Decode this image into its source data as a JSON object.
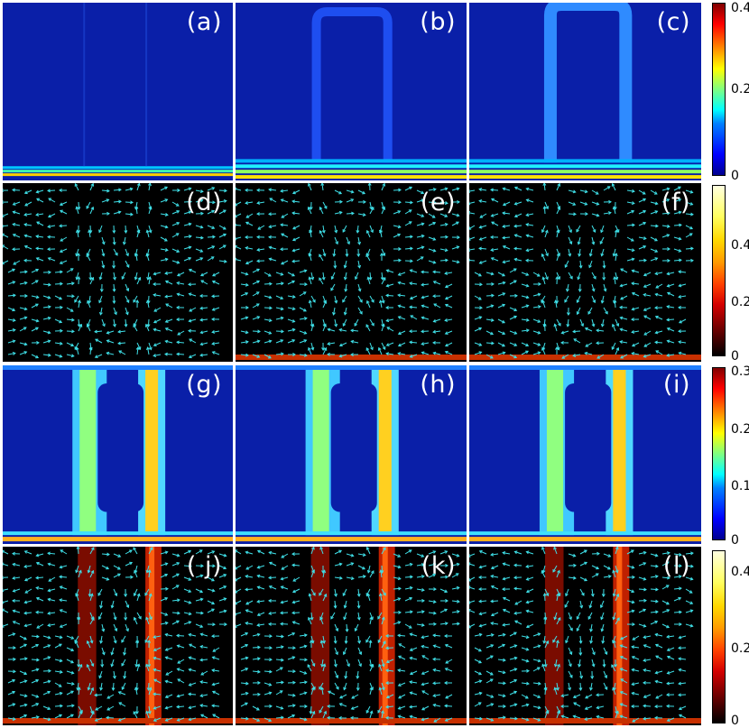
{
  "panels": {
    "a": {
      "label": "(a)",
      "kind": "density",
      "stage": 0
    },
    "b": {
      "label": "(b)",
      "kind": "density",
      "stage": 1
    },
    "c": {
      "label": "(c)",
      "kind": "density",
      "stage": 2
    },
    "d": {
      "label": "(d)",
      "kind": "vector",
      "stage": 0
    },
    "e": {
      "label": "(e)",
      "kind": "vector",
      "stage": 1
    },
    "f": {
      "label": "(f)",
      "kind": "vector",
      "stage": 2
    },
    "g": {
      "label": "(g)",
      "kind": "density",
      "stage": 3
    },
    "h": {
      "label": "(h)",
      "kind": "density",
      "stage": 4
    },
    "i": {
      "label": "(i)",
      "kind": "density",
      "stage": 5
    },
    "j": {
      "label": "( j)",
      "kind": "vector",
      "stage": 3
    },
    "k": {
      "label": "(k)",
      "kind": "vector",
      "stage": 4
    },
    "l": {
      "label": "(l)",
      "kind": "vector",
      "stage": 5
    }
  },
  "colorbars": {
    "cb1": {
      "colormap": "jet",
      "ticks": [
        "0.4",
        "0.2",
        "0"
      ]
    },
    "cb2": {
      "colormap": "hot",
      "ticks": [
        "0.4",
        "0.2",
        "0"
      ]
    },
    "cb3": {
      "colormap": "jet",
      "ticks": [
        "0.3",
        "0.2",
        "0.1",
        "0"
      ]
    },
    "cb4": {
      "colormap": "hot",
      "ticks": [
        "0.4",
        "0.2",
        "0"
      ]
    }
  },
  "colors": {
    "jet_background": "#0a1fa8",
    "hot_background": "#000000",
    "arrow": "#3fe0e8"
  }
}
